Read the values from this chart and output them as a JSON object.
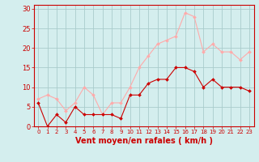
{
  "hours": [
    0,
    1,
    2,
    3,
    4,
    5,
    6,
    7,
    8,
    9,
    10,
    11,
    12,
    13,
    14,
    15,
    16,
    17,
    18,
    19,
    20,
    21,
    22,
    23
  ],
  "avg_wind": [
    6,
    0,
    3,
    1,
    5,
    3,
    3,
    3,
    3,
    2,
    8,
    8,
    11,
    12,
    12,
    15,
    15,
    14,
    10,
    12,
    10,
    10,
    10,
    9
  ],
  "gust_wind": [
    7,
    8,
    7,
    4,
    6,
    10,
    8,
    3,
    6,
    6,
    10,
    15,
    18,
    21,
    22,
    23,
    29,
    28,
    19,
    21,
    19,
    19,
    17,
    19
  ],
  "avg_color": "#cc0000",
  "gust_color": "#ffaaaa",
  "bg_color": "#d4eeee",
  "grid_color": "#aacccc",
  "xlabel": "Vent moyen/en rafales ( km/h )",
  "ylim": [
    0,
    31
  ],
  "yticks": [
    0,
    5,
    10,
    15,
    20,
    25,
    30
  ],
  "tick_color": "#cc0000",
  "axis_color": "#cc0000",
  "xlabel_fontsize": 7,
  "tick_fontsize": 5,
  "ytick_fontsize": 6
}
